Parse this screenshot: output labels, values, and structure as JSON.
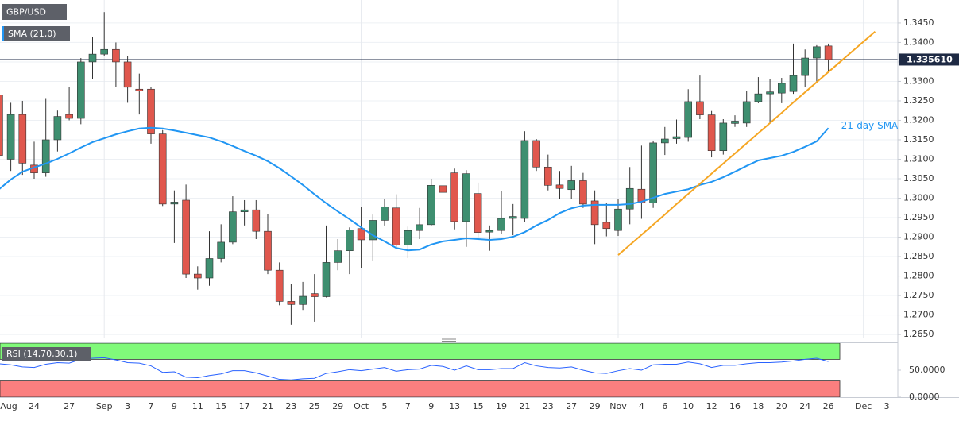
{
  "chart_data": [
    {
      "type": "candlestick",
      "title": "GBP/USD",
      "categories": [
        "Aug",
        null,
        null,
        "24",
        null,
        null,
        "27",
        null,
        null,
        "Sep",
        null,
        "3",
        null,
        "7",
        null,
        "9",
        null,
        "11",
        null,
        "15",
        null,
        "17",
        null,
        "21",
        null,
        "23",
        null,
        "25",
        null,
        "29",
        null,
        "Oct",
        null,
        "5",
        null,
        "7",
        null,
        "9",
        null,
        "13",
        null,
        "15",
        null,
        "19",
        null,
        "21",
        null,
        "23",
        null,
        "27",
        null,
        "29",
        null,
        "Nov",
        null,
        "4",
        null,
        "6",
        null,
        "10",
        null,
        "12",
        null,
        "16",
        null,
        "18",
        null,
        "20",
        null,
        "24",
        null,
        "26",
        null,
        null,
        "Dec",
        null,
        "3"
      ],
      "open": [
        1.3265,
        1.31,
        1.3215,
        1.3085,
        1.3065,
        1.315,
        1.3215,
        1.3205,
        1.335,
        1.337,
        1.3382,
        1.335,
        1.328,
        1.328,
        1.3165,
        1.2985,
        1.2995,
        1.2805,
        1.2795,
        1.2845,
        1.2887,
        1.2965,
        1.297,
        1.2915,
        1.2815,
        1.2735,
        1.2727,
        1.2755,
        1.2747,
        1.2835,
        1.2865,
        1.2922,
        1.2893,
        1.2943,
        1.2975,
        1.288,
        1.2917,
        1.2932,
        1.3032,
        1.3065,
        1.294,
        1.3012,
        1.2913,
        1.2917,
        1.2948,
        1.2948,
        1.3148,
        1.308,
        1.3034,
        1.3022,
        1.3045,
        1.2993,
        1.2938,
        1.2917,
        1.2972,
        1.3023,
        1.2988,
        1.3142,
        1.3153,
        1.3156,
        1.3248,
        1.3214,
        1.3122,
        1.3192,
        1.3193,
        1.3248,
        1.3268,
        1.327,
        1.3274,
        1.3315,
        1.336,
        1.3391,
        null,
        null,
        null,
        null,
        null
      ],
      "high": [
        1.3285,
        1.3245,
        1.325,
        1.3145,
        1.3255,
        1.3225,
        1.3285,
        1.336,
        1.3415,
        1.3478,
        1.34,
        1.3365,
        1.332,
        1.3285,
        1.3175,
        1.302,
        1.3035,
        1.2825,
        1.2915,
        1.2933,
        1.3005,
        1.2995,
        1.2995,
        1.296,
        1.2835,
        1.278,
        1.2785,
        1.2805,
        1.293,
        1.2895,
        1.2925,
        1.2978,
        1.2958,
        1.2998,
        1.301,
        1.2927,
        1.2975,
        1.305,
        1.3082,
        1.3076,
        1.3072,
        1.304,
        1.293,
        1.3018,
        1.2985,
        1.3172,
        1.3152,
        1.3112,
        1.307,
        1.3083,
        1.3065,
        1.302,
        1.2988,
        1.2998,
        1.308,
        1.3135,
        1.3148,
        1.3183,
        1.3202,
        1.328,
        1.3315,
        1.3224,
        1.3203,
        1.3213,
        1.3275,
        1.3311,
        1.3305,
        1.3309,
        1.3397,
        1.3382,
        1.3393,
        1.3397,
        null,
        null,
        null,
        null,
        null
      ],
      "low": [
        1.3075,
        1.307,
        1.306,
        1.305,
        1.3055,
        1.312,
        1.32,
        1.319,
        1.3305,
        1.3365,
        1.3285,
        1.3245,
        1.3215,
        1.314,
        1.298,
        1.2885,
        1.2795,
        1.2765,
        1.2775,
        1.2835,
        1.2882,
        1.293,
        1.2895,
        1.2805,
        1.2725,
        1.2675,
        1.2713,
        1.2683,
        1.2745,
        1.2815,
        1.2805,
        1.282,
        1.284,
        1.293,
        1.2872,
        1.2846,
        1.2895,
        1.2928,
        1.3,
        1.292,
        1.2875,
        1.29,
        1.2865,
        1.2908,
        1.2905,
        1.2938,
        1.307,
        1.302,
        1.2999,
        1.2998,
        1.2975,
        1.2882,
        1.2902,
        1.2903,
        1.2933,
        1.2947,
        1.2975,
        1.3111,
        1.314,
        1.3145,
        1.3203,
        1.3105,
        1.3112,
        1.3183,
        1.3183,
        1.3244,
        1.3193,
        1.3244,
        1.3268,
        1.3285,
        1.3299,
        1.3325,
        null,
        null,
        null,
        null,
        null
      ],
      "close": [
        1.311,
        1.3215,
        1.309,
        1.3065,
        1.315,
        1.321,
        1.3205,
        1.335,
        1.337,
        1.3382,
        1.335,
        1.3285,
        1.3275,
        1.3165,
        1.2985,
        1.299,
        1.2805,
        1.2795,
        1.2845,
        1.2887,
        1.2965,
        1.297,
        1.2915,
        1.2815,
        1.2735,
        1.2727,
        1.2748,
        1.2747,
        1.2835,
        1.2865,
        1.2918,
        1.2893,
        1.2943,
        1.2978,
        1.288,
        1.2917,
        1.2932,
        1.3033,
        1.3015,
        1.294,
        1.3063,
        1.2912,
        1.2917,
        1.2948,
        1.2953,
        1.3148,
        1.308,
        1.3033,
        1.3025,
        1.3045,
        1.2985,
        1.2932,
        1.2922,
        1.2972,
        1.3025,
        1.2988,
        1.3142,
        1.3152,
        1.3158,
        1.3248,
        1.3214,
        1.3122,
        1.3193,
        1.3198,
        1.3248,
        1.3268,
        1.3273,
        1.3295,
        1.3315,
        1.336,
        1.3389,
        1.33561,
        null,
        null,
        null,
        null,
        null
      ],
      "up_color": "#3e8f70",
      "down_color": "#e0574d",
      "wick_color": "#333333",
      "sma": {
        "name": "SMA (21,0)",
        "annotation": "21-day SMA",
        "color": "#2196f3",
        "values": [
          1.3023,
          1.3048,
          1.3068,
          1.3079,
          1.3089,
          1.3101,
          1.3115,
          1.313,
          1.3144,
          1.3154,
          1.3164,
          1.3172,
          1.3179,
          1.3181,
          1.3179,
          1.3174,
          1.3168,
          1.3162,
          1.3156,
          1.3146,
          1.3134,
          1.3121,
          1.3109,
          1.3095,
          1.3077,
          1.3056,
          1.3034,
          1.301,
          1.2987,
          1.2966,
          1.2946,
          1.2925,
          1.2905,
          1.2889,
          1.2872,
          1.2866,
          1.2868,
          1.2881,
          1.2889,
          1.2893,
          1.2897,
          1.2895,
          1.2893,
          1.2895,
          1.2901,
          1.2913,
          1.293,
          1.2944,
          1.2962,
          1.2974,
          1.2981,
          1.2983,
          1.2983,
          1.2983,
          1.2985,
          1.2991,
          1.3001,
          1.3011,
          1.3017,
          1.3023,
          1.3034,
          1.3042,
          1.3054,
          1.3068,
          1.3083,
          1.3097,
          1.3103,
          1.3109,
          1.3119,
          1.3132,
          1.3146,
          1.318,
          null,
          null,
          null,
          null,
          null
        ]
      },
      "trendline": {
        "color": "#f5a623",
        "values": [
          null,
          null,
          null,
          null,
          null,
          null,
          null,
          null,
          null,
          null,
          null,
          null,
          null,
          null,
          null,
          null,
          null,
          null,
          null,
          null,
          null,
          null,
          null,
          null,
          null,
          null,
          null,
          null,
          null,
          null,
          null,
          null,
          null,
          null,
          null,
          null,
          null,
          null,
          null,
          null,
          null,
          null,
          null,
          null,
          null,
          null,
          null,
          null,
          null,
          null,
          null,
          null,
          null,
          1.2854,
          1.288,
          1.2906,
          1.2932,
          1.2958,
          1.2985,
          1.3011,
          1.3037,
          1.3063,
          1.3089,
          1.3115,
          1.3141,
          1.3167,
          1.3193,
          1.3219,
          1.3246,
          1.3272,
          1.3298,
          1.3324,
          1.335,
          1.3376,
          1.3402,
          1.3428,
          null
        ]
      },
      "current_price": {
        "value": 1.33561,
        "label": "1.335610"
      },
      "ylim": [
        1.2642,
        1.3509
      ],
      "yticks": [
        {
          "value": 1.345,
          "label": "1.3450"
        },
        {
          "value": 1.34,
          "label": "1.3400"
        },
        {
          "value": 1.335,
          "label": "1.3350"
        },
        {
          "value": 1.33,
          "label": "1.3300"
        },
        {
          "value": 1.325,
          "label": "1.3250"
        },
        {
          "value": 1.32,
          "label": "1.3200"
        },
        {
          "value": 1.315,
          "label": "1.3150"
        },
        {
          "value": 1.31,
          "label": "1.3100"
        },
        {
          "value": 1.305,
          "label": "1.3050"
        },
        {
          "value": 1.3,
          "label": "1.3000"
        },
        {
          "value": 1.295,
          "label": "1.2950"
        },
        {
          "value": 1.29,
          "label": "1.2900"
        },
        {
          "value": 1.285,
          "label": "1.2850"
        },
        {
          "value": 1.28,
          "label": "1.2800"
        },
        {
          "value": 1.275,
          "label": "1.2750"
        },
        {
          "value": 1.27,
          "label": "1.2700"
        },
        {
          "value": 1.265,
          "label": "1.2650"
        }
      ],
      "grid": true
    },
    {
      "type": "line",
      "title": "RSI (14,70,30,1)",
      "color": "#2962ff",
      "values": [
        62,
        60,
        56,
        55,
        61,
        64,
        63,
        70,
        72,
        73,
        69,
        64,
        63,
        58,
        46,
        47,
        37,
        36,
        40,
        43,
        49,
        49,
        45,
        39,
        33,
        32,
        34,
        35,
        44,
        47,
        51,
        49,
        52,
        55,
        48,
        51,
        52,
        59,
        57,
        50,
        58,
        51,
        51,
        53,
        53,
        64,
        58,
        55,
        54,
        56,
        50,
        45,
        44,
        49,
        53,
        50,
        60,
        61,
        61,
        65,
        62,
        55,
        59,
        59,
        62,
        64,
        64,
        65,
        67,
        70,
        72,
        66,
        null,
        null,
        null,
        null,
        null
      ],
      "overbought": 70,
      "oversold": 30,
      "overbought_color": "#80fa7a",
      "oversold_color": "#fa7f7f",
      "ylim": [
        0,
        100
      ],
      "yticks": [
        {
          "value": 50,
          "label": "50.0000"
        },
        {
          "value": 0,
          "label": "0.0000"
        }
      ]
    }
  ]
}
